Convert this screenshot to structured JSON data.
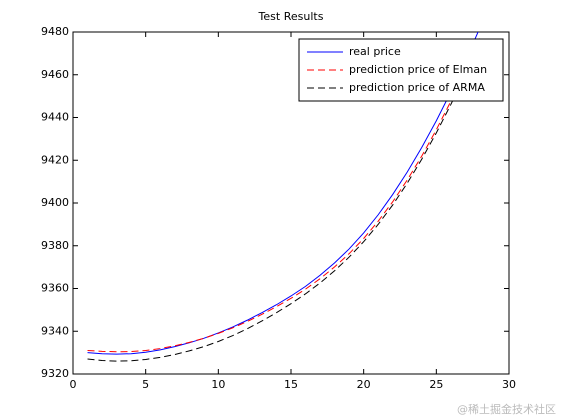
{
  "chart_data": {
    "type": "line",
    "title": "Test Results",
    "x": [
      1,
      2,
      3,
      4,
      5,
      6,
      7,
      8,
      9,
      10,
      11,
      12,
      13,
      14,
      15,
      16,
      17,
      18,
      19,
      20,
      21,
      22,
      23,
      24,
      25,
      26,
      27,
      28
    ],
    "series": [
      {
        "name": "real price",
        "color": "#0000ff",
        "linestyle": "solid",
        "values": [
          9330,
          9329.5,
          9329.3,
          9329.5,
          9330.2,
          9331.3,
          9332.8,
          9334.6,
          9336.7,
          9339.2,
          9342,
          9345.2,
          9348.7,
          9352.4,
          9356.5,
          9361,
          9366.2,
          9372,
          9378.5,
          9386,
          9394.5,
          9404,
          9414.5,
          9426,
          9438.5,
          9452,
          9466.5,
          9482
        ]
      },
      {
        "name": "prediction price of Elman",
        "color": "#ff0000",
        "linestyle": "dashed",
        "values": [
          9331,
          9330.6,
          9330.4,
          9330.5,
          9331,
          9331.9,
          9333.2,
          9334.8,
          9336.7,
          9339,
          9341.6,
          9344.6,
          9347.9,
          9351.5,
          9355.4,
          9359.7,
          9364.6,
          9370.1,
          9376.3,
          9383.4,
          9391.5,
          9400.6,
          9410.8,
          9422,
          9434.3,
          9447.6,
          9461.8,
          9477
        ]
      },
      {
        "name": "prediction price of ARMA",
        "color": "#000000",
        "linestyle": "dashed",
        "values": [
          9327,
          9326.3,
          9326,
          9326.2,
          9326.8,
          9327.8,
          9329.1,
          9330.8,
          9332.8,
          9335.2,
          9338,
          9341.2,
          9344.8,
          9348.7,
          9352.9,
          9357.5,
          9362.6,
          9368.3,
          9374.7,
          9381.9,
          9390,
          9399.1,
          9409.3,
          9420.5,
          9432.8,
          9446.1,
          9460.4,
          9475.6
        ]
      }
    ],
    "xlim": [
      0,
      30
    ],
    "xticks": [
      0,
      5,
      10,
      15,
      20,
      25,
      30
    ],
    "ylim": [
      9320,
      9480
    ],
    "yticks": [
      9320,
      9340,
      9360,
      9380,
      9400,
      9420,
      9440,
      9460,
      9480
    ],
    "legend": "northeast"
  },
  "watermark": "@稀土掘金技术社区"
}
